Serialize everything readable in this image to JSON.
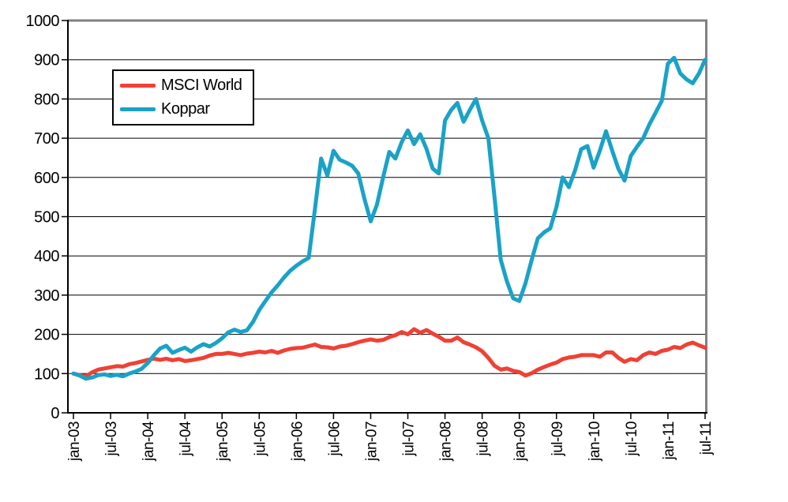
{
  "chart_data": {
    "type": "line",
    "title": "",
    "xlabel": "",
    "ylabel": "",
    "ylim": [
      0,
      1000
    ],
    "y_ticks": [
      0,
      100,
      200,
      300,
      400,
      500,
      600,
      700,
      800,
      900,
      1000
    ],
    "grid": "horizontal",
    "legend_position": "top-left-inside",
    "x_unit": "month",
    "x_range": "jan-03 to jul-11, monthly (103 points)",
    "x_tick_step": 6,
    "x_tick_labels": [
      "jan-03",
      "jul-03",
      "jan-04",
      "jul-04",
      "jan-05",
      "jul-05",
      "jan-06",
      "jul-06",
      "jan-07",
      "jul-07",
      "jan-08",
      "jul-08",
      "jan-09",
      "jul-09",
      "jan-10",
      "jul-10",
      "jan-11",
      "jul-11"
    ],
    "series": [
      {
        "name": "MSCI World",
        "color": "#EF4135",
        "values": [
          100,
          96,
          93,
          103,
          110,
          113,
          116,
          119,
          118,
          124,
          127,
          131,
          135,
          138,
          135,
          138,
          134,
          137,
          132,
          134,
          137,
          140,
          146,
          150,
          150,
          153,
          150,
          147,
          151,
          153,
          156,
          154,
          158,
          153,
          159,
          163,
          165,
          166,
          170,
          174,
          168,
          167,
          164,
          169,
          171,
          175,
          180,
          184,
          187,
          184,
          186,
          193,
          198,
          206,
          200,
          213,
          204,
          211,
          202,
          194,
          184,
          184,
          192,
          180,
          174,
          167,
          157,
          140,
          120,
          110,
          113,
          107,
          104,
          95,
          101,
          110,
          117,
          123,
          128,
          137,
          141,
          143,
          147,
          147,
          147,
          143,
          154,
          154,
          140,
          130,
          137,
          134,
          147,
          154,
          150,
          158,
          161,
          168,
          165,
          174,
          179,
          172,
          166
        ]
      },
      {
        "name": "Koppar",
        "color": "#1AA2C7",
        "values": [
          100,
          95,
          87,
          90,
          96,
          98,
          94,
          97,
          93,
          100,
          105,
          112,
          127,
          147,
          164,
          171,
          153,
          160,
          166,
          156,
          167,
          175,
          169,
          178,
          190,
          205,
          212,
          206,
          210,
          232,
          262,
          285,
          307,
          325,
          345,
          362,
          375,
          386,
          395,
          520,
          648,
          605,
          668,
          645,
          638,
          630,
          610,
          545,
          488,
          530,
          600,
          665,
          648,
          690,
          720,
          685,
          710,
          673,
          623,
          610,
          745,
          772,
          790,
          742,
          772,
          800,
          745,
          700,
          550,
          390,
          335,
          292,
          285,
          330,
          390,
          445,
          460,
          470,
          525,
          600,
          575,
          618,
          672,
          680,
          625,
          668,
          718,
          668,
          622,
          592,
          655,
          678,
          700,
          735,
          765,
          795,
          890,
          905,
          865,
          850,
          840,
          865,
          900
        ]
      }
    ]
  },
  "style": {
    "gridline_color": "#000000",
    "axis_color": "#000000",
    "outer_border_color": "#808080",
    "background": "#ffffff"
  }
}
